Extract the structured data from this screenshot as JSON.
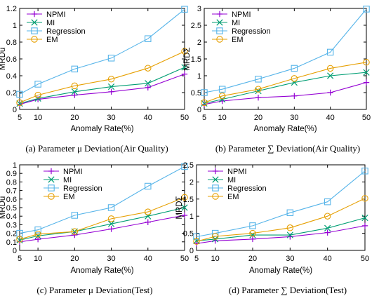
{
  "figure": {
    "colors": {
      "NPMI": "#9400d3",
      "MI": "#009e73",
      "Regression": "#56b4e9",
      "EM": "#e69f00"
    },
    "markers": {
      "NPMI": "plus",
      "MI": "cross",
      "Regression": "square",
      "EM": "circle"
    }
  },
  "chart_data": [
    {
      "type": "line",
      "caption": "(a)  Parameter  μ  Deviation(Air Quality)",
      "xlabel": "Anomaly Rate(%)",
      "ylabel": "MRDu",
      "x": [
        5,
        10,
        20,
        30,
        40,
        50
      ],
      "xlim": [
        5,
        50
      ],
      "ylim": [
        0,
        1.2
      ],
      "yticks": [
        0,
        0.2,
        0.4,
        0.6,
        0.8,
        1,
        1.2
      ],
      "ytick_labels": [
        "0",
        "0.2",
        "0.4",
        "0.6",
        "0.8",
        "1",
        "1.2"
      ],
      "legend": "top-left",
      "series": [
        {
          "name": "NPMI",
          "values": [
            0.06,
            0.12,
            0.17,
            0.21,
            0.26,
            0.42
          ]
        },
        {
          "name": "MI",
          "values": [
            0.07,
            0.13,
            0.21,
            0.27,
            0.31,
            0.5
          ]
        },
        {
          "name": "Regression",
          "values": [
            0.18,
            0.3,
            0.48,
            0.61,
            0.84,
            1.19
          ]
        },
        {
          "name": "EM",
          "values": [
            0.08,
            0.17,
            0.28,
            0.36,
            0.49,
            0.69
          ]
        }
      ]
    },
    {
      "type": "line",
      "caption": "(b)  Parameter  ∑  Deviation(Air Quality)",
      "xlabel": "Anomaly Rate(%)",
      "ylabel": "MRDΣ",
      "x": [
        5,
        10,
        20,
        30,
        40,
        50
      ],
      "xlim": [
        5,
        50
      ],
      "ylim": [
        0,
        3
      ],
      "yticks": [
        0,
        0.5,
        1,
        1.5,
        2,
        2.5,
        3
      ],
      "ytick_labels": [
        "0",
        "0.5",
        "1",
        "1.5",
        "2",
        "2.5",
        "3"
      ],
      "legend": "top-left",
      "series": [
        {
          "name": "NPMI",
          "values": [
            0.15,
            0.25,
            0.35,
            0.4,
            0.5,
            0.8
          ]
        },
        {
          "name": "MI",
          "values": [
            0.18,
            0.3,
            0.55,
            0.8,
            1.0,
            1.1
          ]
        },
        {
          "name": "Regression",
          "values": [
            0.5,
            0.6,
            0.9,
            1.22,
            1.7,
            2.98
          ]
        },
        {
          "name": "EM",
          "values": [
            0.2,
            0.4,
            0.6,
            0.92,
            1.22,
            1.4
          ]
        }
      ]
    },
    {
      "type": "line",
      "caption": "(c)  Parameter  μ  Deviation(Test)",
      "xlabel": "Anomaly Rate(%)",
      "ylabel": "MRDu",
      "x": [
        5,
        10,
        20,
        30,
        40,
        50
      ],
      "xlim": [
        5,
        50
      ],
      "ylim": [
        0,
        1
      ],
      "yticks": [
        0,
        0.1,
        0.2,
        0.3,
        0.4,
        0.5,
        0.6,
        0.7,
        0.8,
        0.9,
        1
      ],
      "ytick_labels": [
        "0",
        "0.1",
        "0.2",
        "0.3",
        "0.4",
        "0.5",
        "0.6",
        "0.7",
        "0.8",
        "0.9",
        "1"
      ],
      "legend": "top-left",
      "series": [
        {
          "name": "NPMI",
          "values": [
            0.1,
            0.13,
            0.18,
            0.25,
            0.33,
            0.41
          ]
        },
        {
          "name": "MI",
          "values": [
            0.12,
            0.17,
            0.22,
            0.31,
            0.4,
            0.5
          ]
        },
        {
          "name": "Regression",
          "values": [
            0.2,
            0.24,
            0.41,
            0.5,
            0.75,
            0.98
          ]
        },
        {
          "name": "EM",
          "values": [
            0.13,
            0.19,
            0.22,
            0.37,
            0.45,
            0.62
          ]
        }
      ]
    },
    {
      "type": "line",
      "caption": "(d)  Parameter ∑ Deviation(Test)",
      "xlabel": "Anomaly Rate(%)",
      "ylabel": "MRDΣ",
      "x": [
        5,
        10,
        20,
        30,
        40,
        50
      ],
      "xlim": [
        5,
        50
      ],
      "ylim": [
        0,
        2.5
      ],
      "yticks": [
        0,
        0.5,
        1,
        1.5,
        2,
        2.5
      ],
      "ytick_labels": [
        "0",
        "0.5",
        "1",
        "1.5",
        "2",
        "2.5"
      ],
      "legend": "top-left",
      "series": [
        {
          "name": "NPMI",
          "values": [
            0.2,
            0.28,
            0.33,
            0.4,
            0.52,
            0.72
          ]
        },
        {
          "name": "MI",
          "values": [
            0.28,
            0.33,
            0.45,
            0.45,
            0.65,
            0.95
          ]
        },
        {
          "name": "Regression",
          "values": [
            0.4,
            0.5,
            0.72,
            1.1,
            1.42,
            2.32
          ]
        },
        {
          "name": "EM",
          "values": [
            0.26,
            0.41,
            0.5,
            0.66,
            1.0,
            1.52
          ]
        }
      ]
    }
  ]
}
